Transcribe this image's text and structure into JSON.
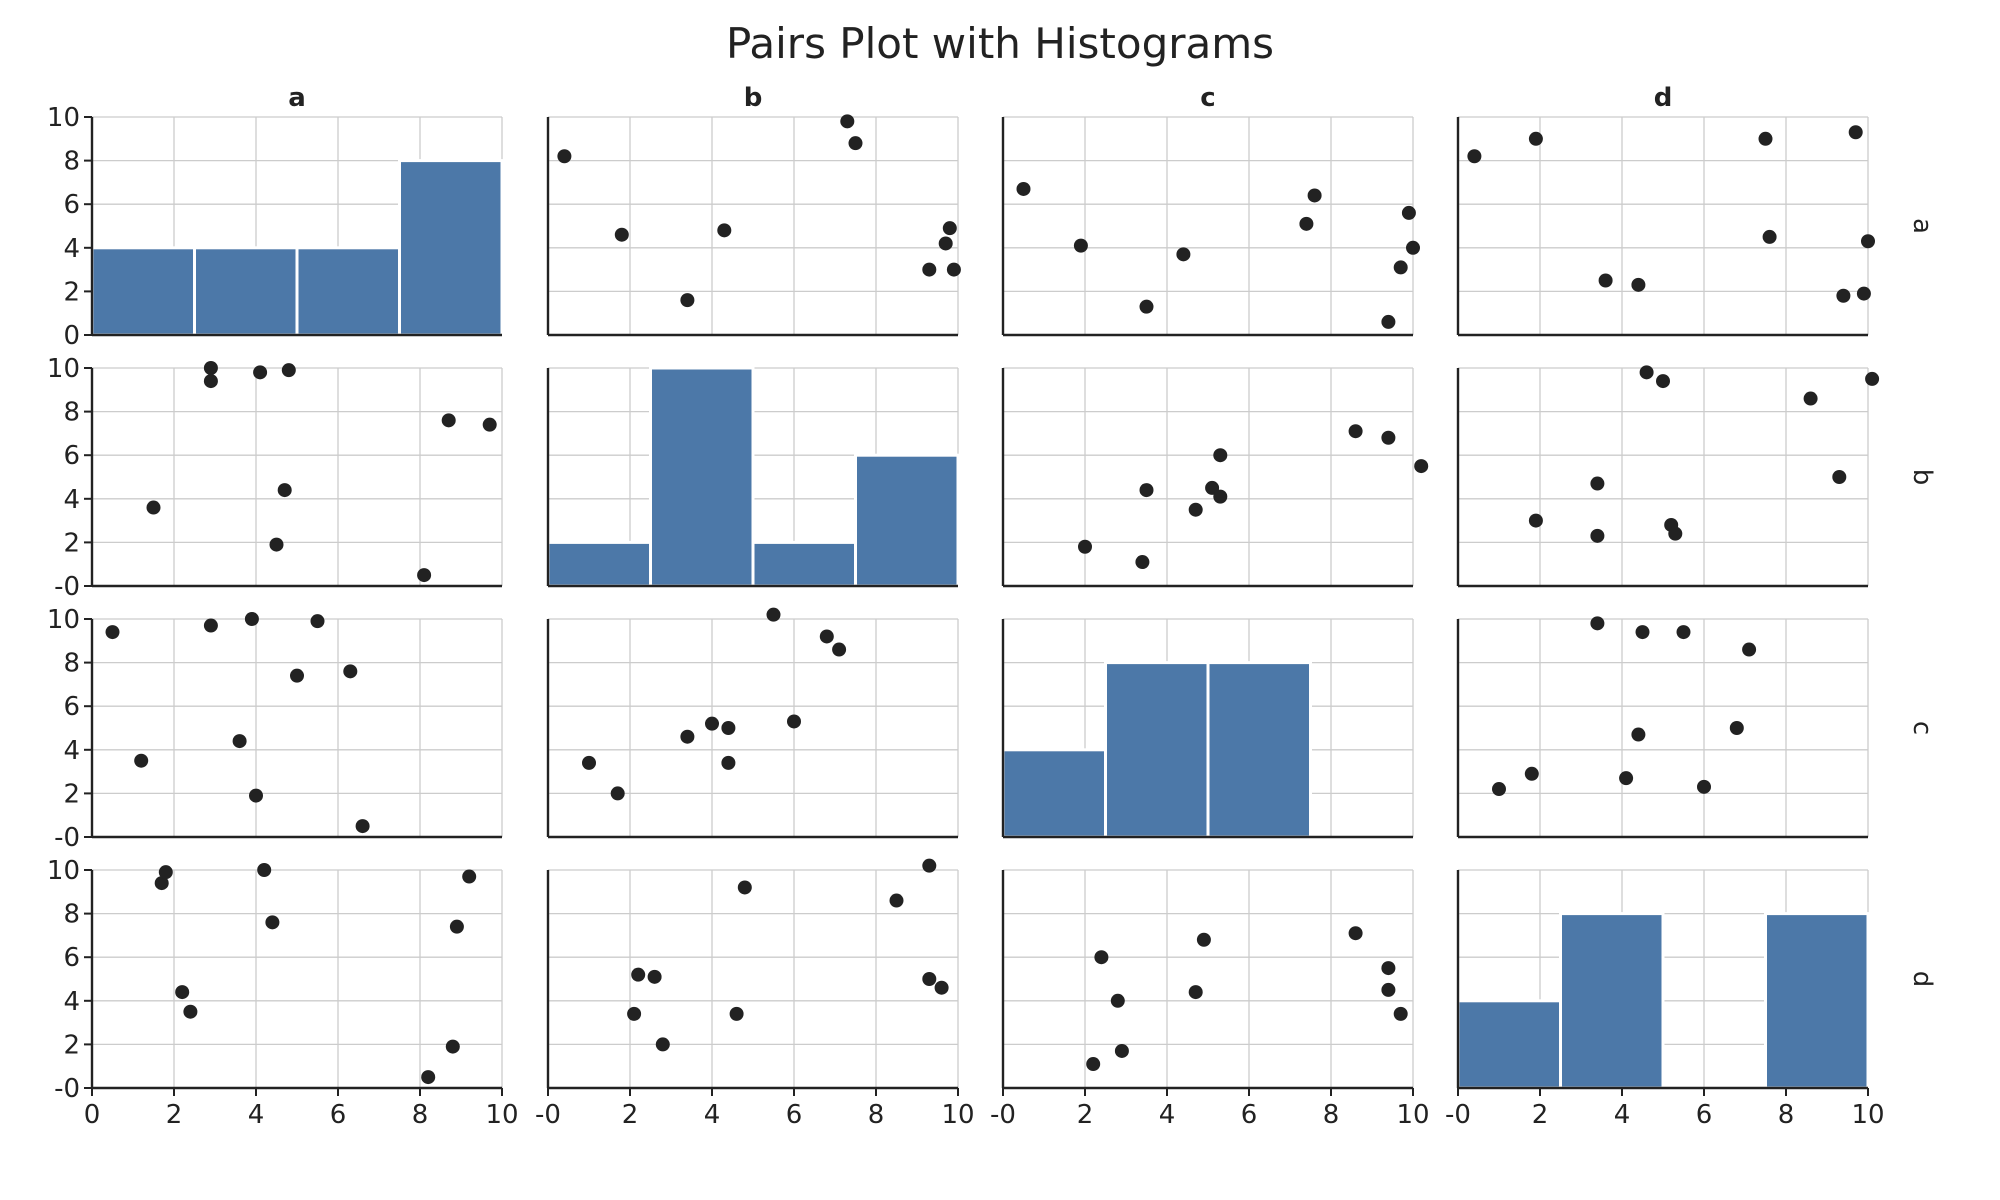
{
  "chart_data": {
    "type": "pairs",
    "title": "Pairs Plot with Histograms",
    "variables": [
      "a",
      "b",
      "c",
      "d"
    ],
    "axis_range": [
      0,
      10
    ],
    "ticks": [
      0,
      2,
      4,
      6,
      8,
      10
    ],
    "tick_labels": {
      "y_col0": [
        "0",
        "2",
        "4",
        "6",
        "8",
        "10"
      ],
      "y_other": [
        "-0",
        "2",
        "4",
        "6",
        "8",
        "10"
      ],
      "x_col0": [
        "0",
        "2",
        "4",
        "6",
        "8",
        "10"
      ],
      "x_other": [
        "-0",
        "2",
        "4",
        "6",
        "8",
        "10"
      ]
    },
    "grid": true,
    "point_color": "#222222",
    "bar_color": "#4c78a8",
    "histograms": {
      "a": {
        "edges": [
          0,
          2.5,
          5,
          7.5,
          10
        ],
        "counts": [
          2,
          2,
          2,
          4
        ]
      },
      "b": {
        "edges": [
          0,
          2.5,
          5,
          7.5,
          10
        ],
        "counts": [
          1,
          5,
          1,
          3
        ]
      },
      "c": {
        "edges": [
          0,
          2.5,
          5,
          7.5,
          10
        ],
        "counts": [
          2,
          4,
          4,
          0
        ]
      },
      "d": {
        "edges": [
          0,
          2.5,
          5,
          7.5,
          10
        ],
        "counts": [
          2,
          4,
          0,
          4
        ]
      }
    },
    "scatter": [
      {
        "row": "a",
        "col": "b",
        "points": [
          [
            0.4,
            8.2
          ],
          [
            1.8,
            4.6
          ],
          [
            3.4,
            1.6
          ],
          [
            4.3,
            4.8
          ],
          [
            7.3,
            9.8
          ],
          [
            7.5,
            8.8
          ],
          [
            9.3,
            3.0
          ],
          [
            9.7,
            4.2
          ],
          [
            9.8,
            4.9
          ],
          [
            9.9,
            3.0
          ]
        ]
      },
      {
        "row": "a",
        "col": "c",
        "points": [
          [
            0.5,
            6.7
          ],
          [
            1.9,
            4.1
          ],
          [
            3.5,
            1.3
          ],
          [
            4.4,
            3.7
          ],
          [
            7.4,
            5.1
          ],
          [
            7.6,
            6.4
          ],
          [
            9.4,
            0.6
          ],
          [
            9.7,
            3.1
          ],
          [
            9.9,
            5.6
          ],
          [
            10.0,
            4.0
          ]
        ]
      },
      {
        "row": "a",
        "col": "d",
        "points": [
          [
            0.4,
            8.2
          ],
          [
            1.9,
            9.0
          ],
          [
            3.6,
            2.5
          ],
          [
            4.4,
            2.3
          ],
          [
            7.5,
            9.0
          ],
          [
            7.6,
            4.5
          ],
          [
            9.4,
            1.8
          ],
          [
            9.7,
            9.3
          ],
          [
            9.9,
            1.9
          ],
          [
            10.0,
            4.3
          ]
        ]
      },
      {
        "row": "b",
        "col": "a",
        "points": [
          [
            1.5,
            3.6
          ],
          [
            2.9,
            9.4
          ],
          [
            2.9,
            10.0
          ],
          [
            4.1,
            9.8
          ],
          [
            4.5,
            1.9
          ],
          [
            4.7,
            4.4
          ],
          [
            4.8,
            9.9
          ],
          [
            8.1,
            0.5
          ],
          [
            8.7,
            7.6
          ],
          [
            9.7,
            7.4
          ]
        ]
      },
      {
        "row": "b",
        "col": "c",
        "points": [
          [
            2.0,
            1.8
          ],
          [
            3.4,
            1.1
          ],
          [
            3.5,
            4.4
          ],
          [
            4.7,
            3.5
          ],
          [
            5.1,
            4.5
          ],
          [
            5.3,
            4.1
          ],
          [
            5.3,
            6.0
          ],
          [
            8.6,
            7.1
          ],
          [
            9.4,
            6.8
          ],
          [
            10.2,
            5.5
          ]
        ]
      },
      {
        "row": "b",
        "col": "d",
        "points": [
          [
            1.9,
            3.0
          ],
          [
            3.4,
            2.3
          ],
          [
            3.4,
            4.7
          ],
          [
            4.6,
            9.8
          ],
          [
            5.0,
            9.4
          ],
          [
            5.2,
            2.8
          ],
          [
            5.3,
            2.4
          ],
          [
            8.6,
            8.6
          ],
          [
            9.3,
            5.0
          ],
          [
            10.1,
            9.5
          ]
        ]
      },
      {
        "row": "c",
        "col": "a",
        "points": [
          [
            0.5,
            9.4
          ],
          [
            1.2,
            3.5
          ],
          [
            2.9,
            9.7
          ],
          [
            3.6,
            4.4
          ],
          [
            3.9,
            10.0
          ],
          [
            4.0,
            1.9
          ],
          [
            5.0,
            7.4
          ],
          [
            5.5,
            9.9
          ],
          [
            6.3,
            7.6
          ],
          [
            6.6,
            0.5
          ]
        ]
      },
      {
        "row": "c",
        "col": "b",
        "points": [
          [
            1.0,
            3.4
          ],
          [
            1.7,
            2.0
          ],
          [
            3.4,
            4.6
          ],
          [
            4.0,
            5.2
          ],
          [
            4.4,
            3.4
          ],
          [
            4.4,
            5.0
          ],
          [
            5.5,
            10.2
          ],
          [
            6.0,
            5.3
          ],
          [
            6.8,
            9.2
          ],
          [
            7.1,
            8.6
          ]
        ]
      },
      {
        "row": "c",
        "col": "d",
        "points": [
          [
            1.0,
            2.2
          ],
          [
            1.8,
            2.9
          ],
          [
            3.4,
            9.8
          ],
          [
            4.1,
            2.7
          ],
          [
            4.4,
            4.7
          ],
          [
            4.5,
            9.4
          ],
          [
            5.5,
            9.4
          ],
          [
            6.0,
            2.3
          ],
          [
            6.8,
            5.0
          ],
          [
            7.1,
            8.6
          ]
        ]
      },
      {
        "row": "d",
        "col": "a",
        "points": [
          [
            1.7,
            9.4
          ],
          [
            1.8,
            9.9
          ],
          [
            2.2,
            4.4
          ],
          [
            2.4,
            3.5
          ],
          [
            4.2,
            10.0
          ],
          [
            4.4,
            7.6
          ],
          [
            8.2,
            0.5
          ],
          [
            8.8,
            1.9
          ],
          [
            8.9,
            7.4
          ],
          [
            9.2,
            9.7
          ]
        ]
      },
      {
        "row": "d",
        "col": "b",
        "points": [
          [
            2.1,
            3.4
          ],
          [
            2.2,
            5.2
          ],
          [
            2.6,
            5.1
          ],
          [
            2.8,
            2.0
          ],
          [
            4.6,
            3.4
          ],
          [
            4.8,
            9.2
          ],
          [
            8.5,
            8.6
          ],
          [
            9.3,
            10.2
          ],
          [
            9.3,
            5.0
          ],
          [
            9.6,
            4.6
          ]
        ]
      },
      {
        "row": "d",
        "col": "c",
        "points": [
          [
            2.2,
            1.1
          ],
          [
            2.4,
            6.0
          ],
          [
            2.8,
            4.0
          ],
          [
            2.9,
            1.7
          ],
          [
            4.7,
            4.4
          ],
          [
            4.9,
            6.8
          ],
          [
            8.6,
            7.1
          ],
          [
            9.4,
            5.5
          ],
          [
            9.4,
            4.5
          ],
          [
            9.7,
            3.4
          ]
        ]
      }
    ]
  }
}
